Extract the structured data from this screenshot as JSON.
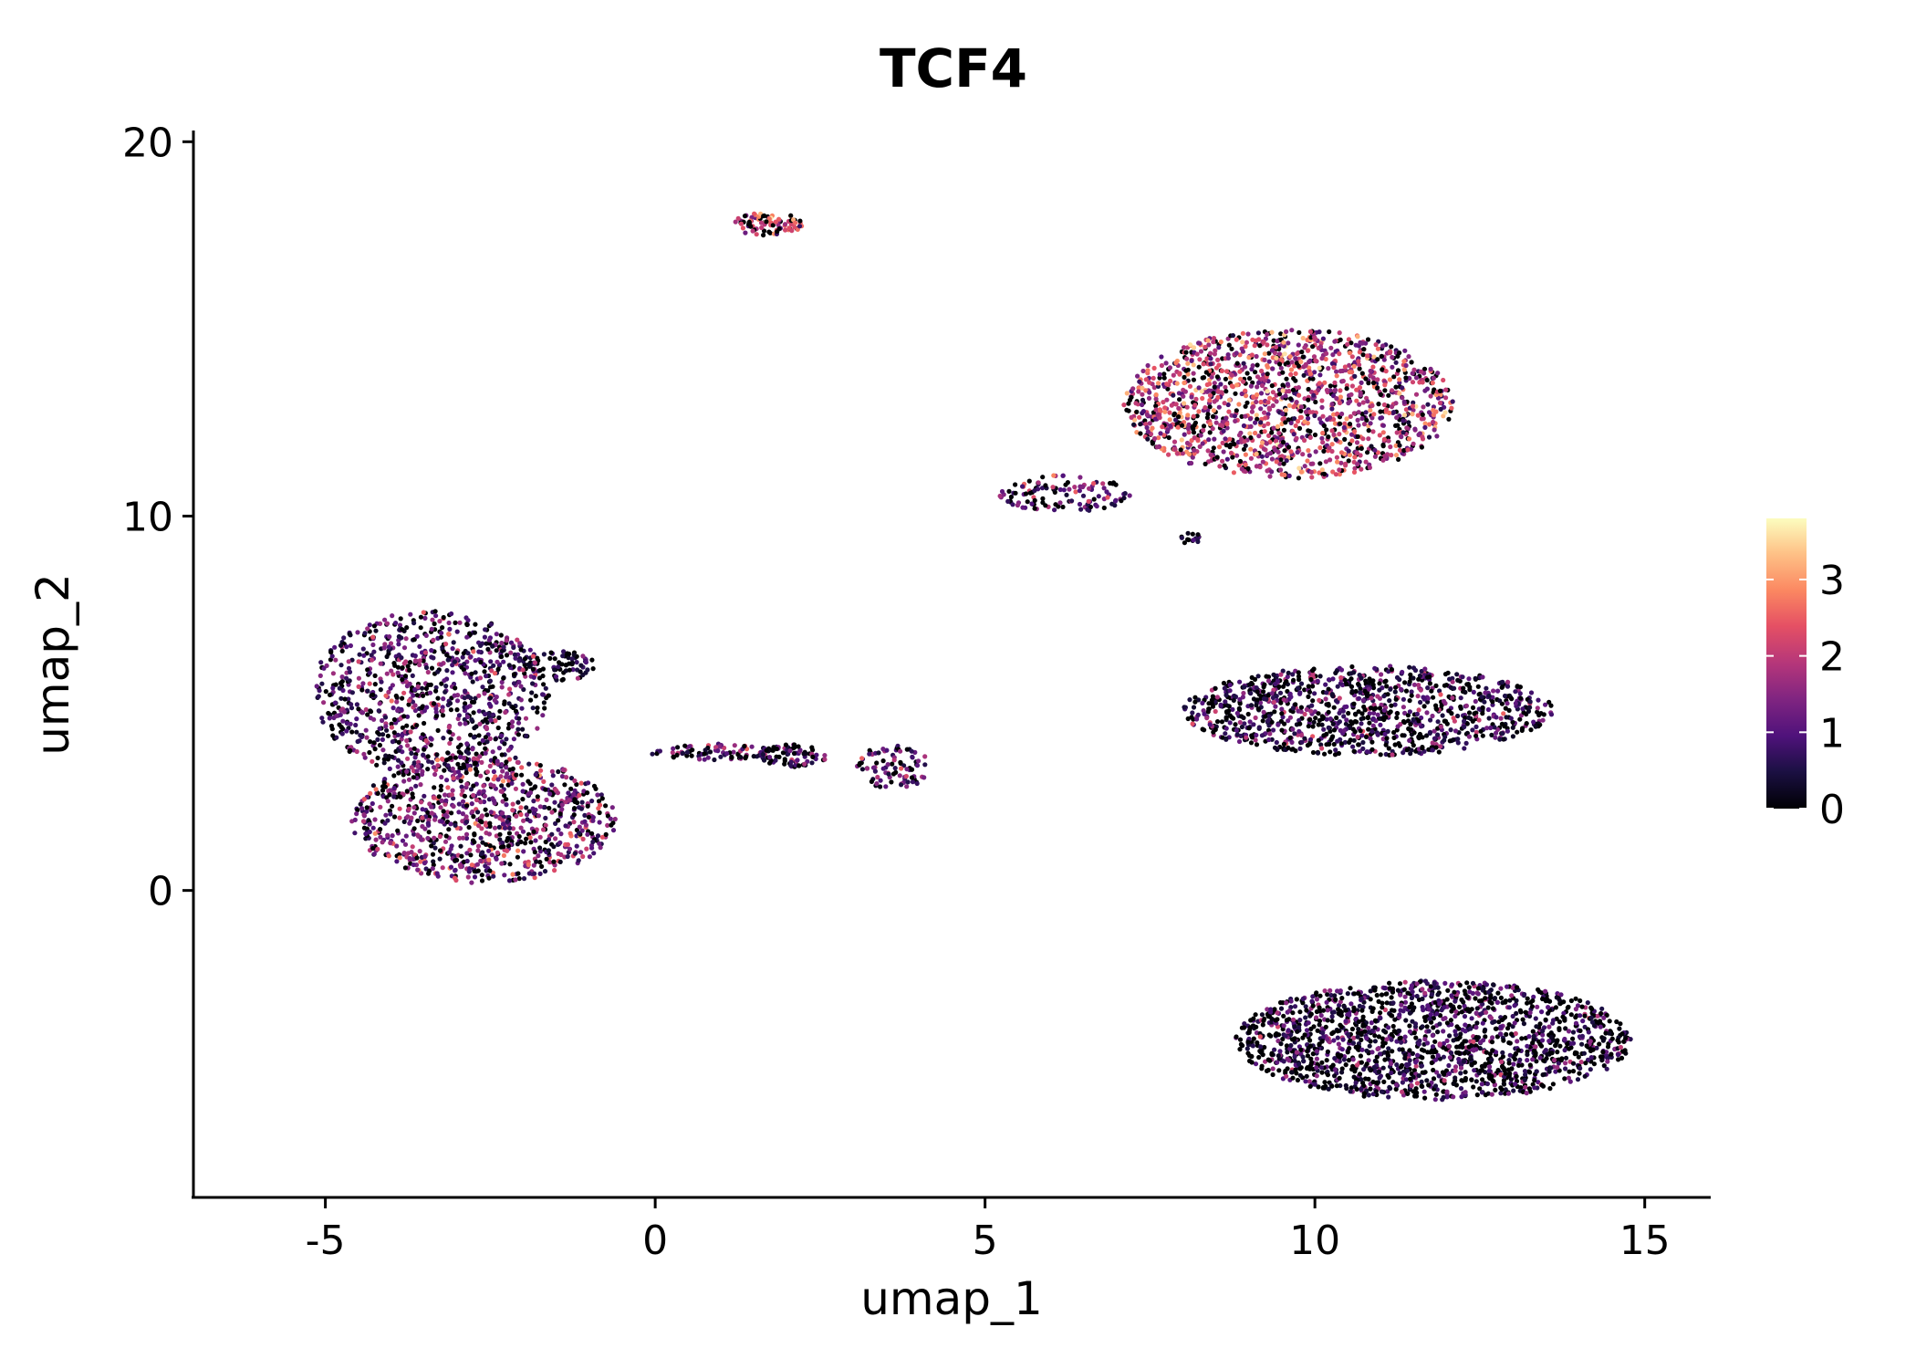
{
  "chart_data": {
    "type": "scatter",
    "title": "TCF4",
    "xlabel": "umap_1",
    "ylabel": "umap_2",
    "xlim": [
      -7,
      16
    ],
    "ylim": [
      -8.2,
      20.3
    ],
    "xticks": [
      -5,
      0,
      5,
      10,
      15
    ],
    "xtick_labels": [
      "-5",
      "0",
      "5",
      "10",
      "15"
    ],
    "yticks": [
      0,
      10,
      20
    ],
    "ytick_labels": [
      "0",
      "10",
      "20"
    ],
    "colorbar": {
      "colormap": "magma",
      "min": 0,
      "max": 3.8,
      "ticks": [
        0,
        1,
        2,
        3
      ],
      "tick_labels": [
        "0",
        "1",
        "2",
        "3"
      ]
    },
    "clusters": [
      {
        "name": "cluster-left-upper",
        "cx": -3.4,
        "cy": 5.3,
        "rx": 1.8,
        "ry": 2.2,
        "n": 900,
        "mean_expr": 0.9
      },
      {
        "name": "cluster-left-lower",
        "cx": -2.6,
        "cy": 1.9,
        "rx": 2.0,
        "ry": 1.7,
        "n": 900,
        "mean_expr": 1.3
      },
      {
        "name": "cluster-left-arm",
        "cx": -1.5,
        "cy": 6.0,
        "rx": 0.6,
        "ry": 0.4,
        "n": 80,
        "mean_expr": 0.6
      },
      {
        "name": "bridge-1",
        "cx": 1.0,
        "cy": 3.7,
        "rx": 1.1,
        "ry": 0.22,
        "n": 90,
        "mean_expr": 0.9
      },
      {
        "name": "bridge-2",
        "cx": 2.1,
        "cy": 3.6,
        "rx": 0.5,
        "ry": 0.3,
        "n": 70,
        "mean_expr": 0.5
      },
      {
        "name": "bridge-3",
        "cx": 3.6,
        "cy": 3.3,
        "rx": 0.55,
        "ry": 0.6,
        "n": 90,
        "mean_expr": 1.0
      },
      {
        "name": "small-top-cluster",
        "cx": 1.7,
        "cy": 17.8,
        "rx": 0.55,
        "ry": 0.3,
        "n": 90,
        "mean_expr": 2.3
      },
      {
        "name": "upper-right-cluster",
        "cx": 9.6,
        "cy": 13.0,
        "rx": 2.5,
        "ry": 2.0,
        "n": 1500,
        "mean_expr": 1.9
      },
      {
        "name": "upper-right-tail",
        "cx": 6.2,
        "cy": 10.6,
        "rx": 1.0,
        "ry": 0.5,
        "n": 120,
        "mean_expr": 1.0
      },
      {
        "name": "upper-right-small",
        "cx": 8.1,
        "cy": 9.4,
        "rx": 0.15,
        "ry": 0.2,
        "n": 15,
        "mean_expr": 0.6
      },
      {
        "name": "middle-right-cluster",
        "cx": 10.8,
        "cy": 4.8,
        "rx": 2.8,
        "ry": 1.2,
        "n": 1100,
        "mean_expr": 0.7
      },
      {
        "name": "bottom-right-cluster",
        "cx": 11.8,
        "cy": -4.0,
        "rx": 3.0,
        "ry": 1.6,
        "n": 1700,
        "mean_expr": 0.55
      }
    ]
  }
}
